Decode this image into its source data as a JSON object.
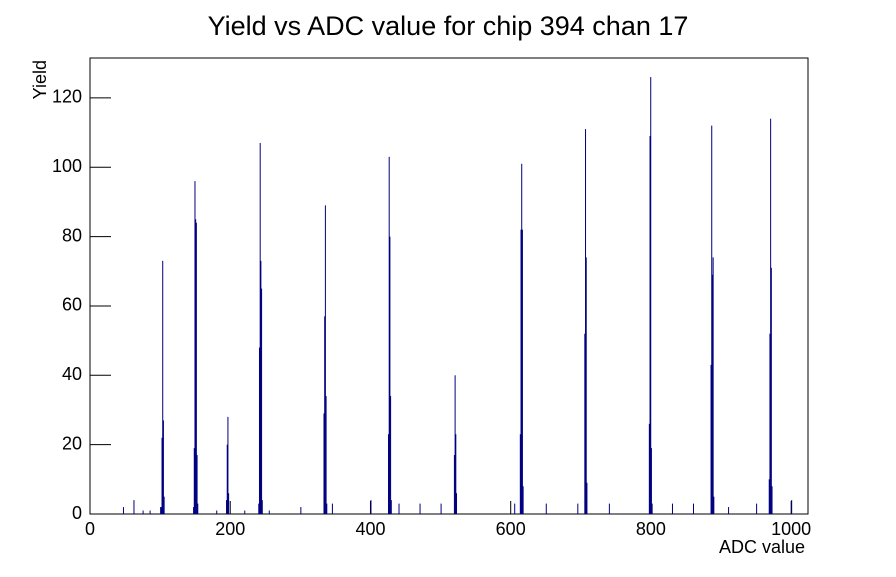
{
  "chart_data": {
    "type": "spikes",
    "title": "Yield vs ADC value for chip 394 chan 17",
    "x_label": "ADC value",
    "y_label": "Yield",
    "color": "#000080",
    "xlim": [
      0,
      1024
    ],
    "ylim": [
      0,
      131.5
    ],
    "xticks": [
      0,
      200,
      400,
      600,
      800,
      1000
    ],
    "yticks": [
      0,
      20,
      40,
      60,
      80,
      100,
      120
    ],
    "x": [
      47,
      62,
      75,
      85,
      100,
      101,
      102,
      103,
      104,
      105,
      147,
      148,
      149,
      150,
      151,
      152,
      153,
      180,
      194,
      195,
      196,
      197,
      220,
      240,
      241,
      242,
      243,
      244,
      245,
      255,
      300,
      333,
      334,
      335,
      336,
      337,
      345,
      400,
      425,
      426,
      427,
      428,
      429,
      440,
      470,
      500,
      519,
      520,
      521,
      522,
      605,
      613,
      614,
      615,
      616,
      617,
      650,
      695,
      705,
      706,
      707,
      708,
      740,
      797,
      798,
      799,
      800,
      801,
      830,
      860,
      885,
      886,
      887,
      888,
      889,
      910,
      950,
      968,
      969,
      970,
      971,
      972,
      1000
    ],
    "values": [
      2,
      4,
      1,
      1,
      2,
      2,
      22,
      73,
      27,
      5,
      2,
      19,
      96,
      85,
      84,
      17,
      3,
      1,
      4,
      20,
      28,
      6,
      1,
      3,
      48,
      107,
      73,
      65,
      4,
      1,
      2,
      29,
      57,
      89,
      34,
      3,
      3,
      4,
      23,
      103,
      80,
      34,
      4,
      3,
      3,
      3,
      17,
      40,
      23,
      6,
      3,
      23,
      82,
      101,
      82,
      8,
      3,
      3,
      52,
      111,
      74,
      9,
      3,
      26,
      109,
      126,
      19,
      3,
      3,
      3,
      43,
      112,
      69,
      74,
      5,
      2,
      3,
      10,
      52,
      114,
      71,
      8,
      4
    ]
  }
}
